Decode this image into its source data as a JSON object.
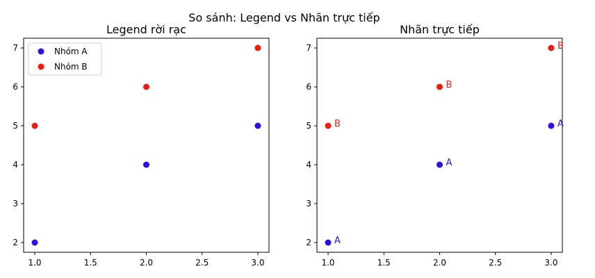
{
  "figure": {
    "suptitle": "So sánh: Legend vs Nhãn trực tiếp"
  },
  "colors": {
    "A": "#2f0bf2",
    "B": "#f21b0b"
  },
  "chart_data": [
    {
      "type": "scatter",
      "title": "Legend rời rạc",
      "xlabel": "",
      "ylabel": "",
      "xlim": [
        0.9,
        3.1
      ],
      "ylim": [
        1.75,
        7.25
      ],
      "xticks": [
        "1.0",
        "1.5",
        "2.0",
        "2.5",
        "3.0"
      ],
      "yticks": [
        "2",
        "3",
        "4",
        "5",
        "6",
        "7"
      ],
      "legend": {
        "placement": "top-left",
        "entries": [
          "Nhóm A",
          "Nhóm B"
        ]
      },
      "series": [
        {
          "name": "Nhóm A",
          "key": "A",
          "x": [
            1,
            2,
            3
          ],
          "y": [
            2,
            4,
            5
          ]
        },
        {
          "name": "Nhóm B",
          "key": "B",
          "x": [
            1,
            2,
            3
          ],
          "y": [
            5,
            6,
            7
          ]
        }
      ],
      "grid": false
    },
    {
      "type": "scatter",
      "title": "Nhãn trực tiếp",
      "xlabel": "",
      "ylabel": "",
      "xlim": [
        0.9,
        3.1
      ],
      "ylim": [
        1.75,
        7.25
      ],
      "xticks": [
        "1.0",
        "1.5",
        "2.0",
        "2.5",
        "3.0"
      ],
      "yticks": [
        "2",
        "3",
        "4",
        "5",
        "6",
        "7"
      ],
      "legend": null,
      "series": [
        {
          "key": "A",
          "x": [
            1,
            2,
            3
          ],
          "y": [
            2,
            4,
            5
          ],
          "point_label": "A"
        },
        {
          "key": "B",
          "x": [
            1,
            2,
            3
          ],
          "y": [
            5,
            6,
            7
          ],
          "point_label": "B"
        }
      ],
      "grid": false
    }
  ]
}
